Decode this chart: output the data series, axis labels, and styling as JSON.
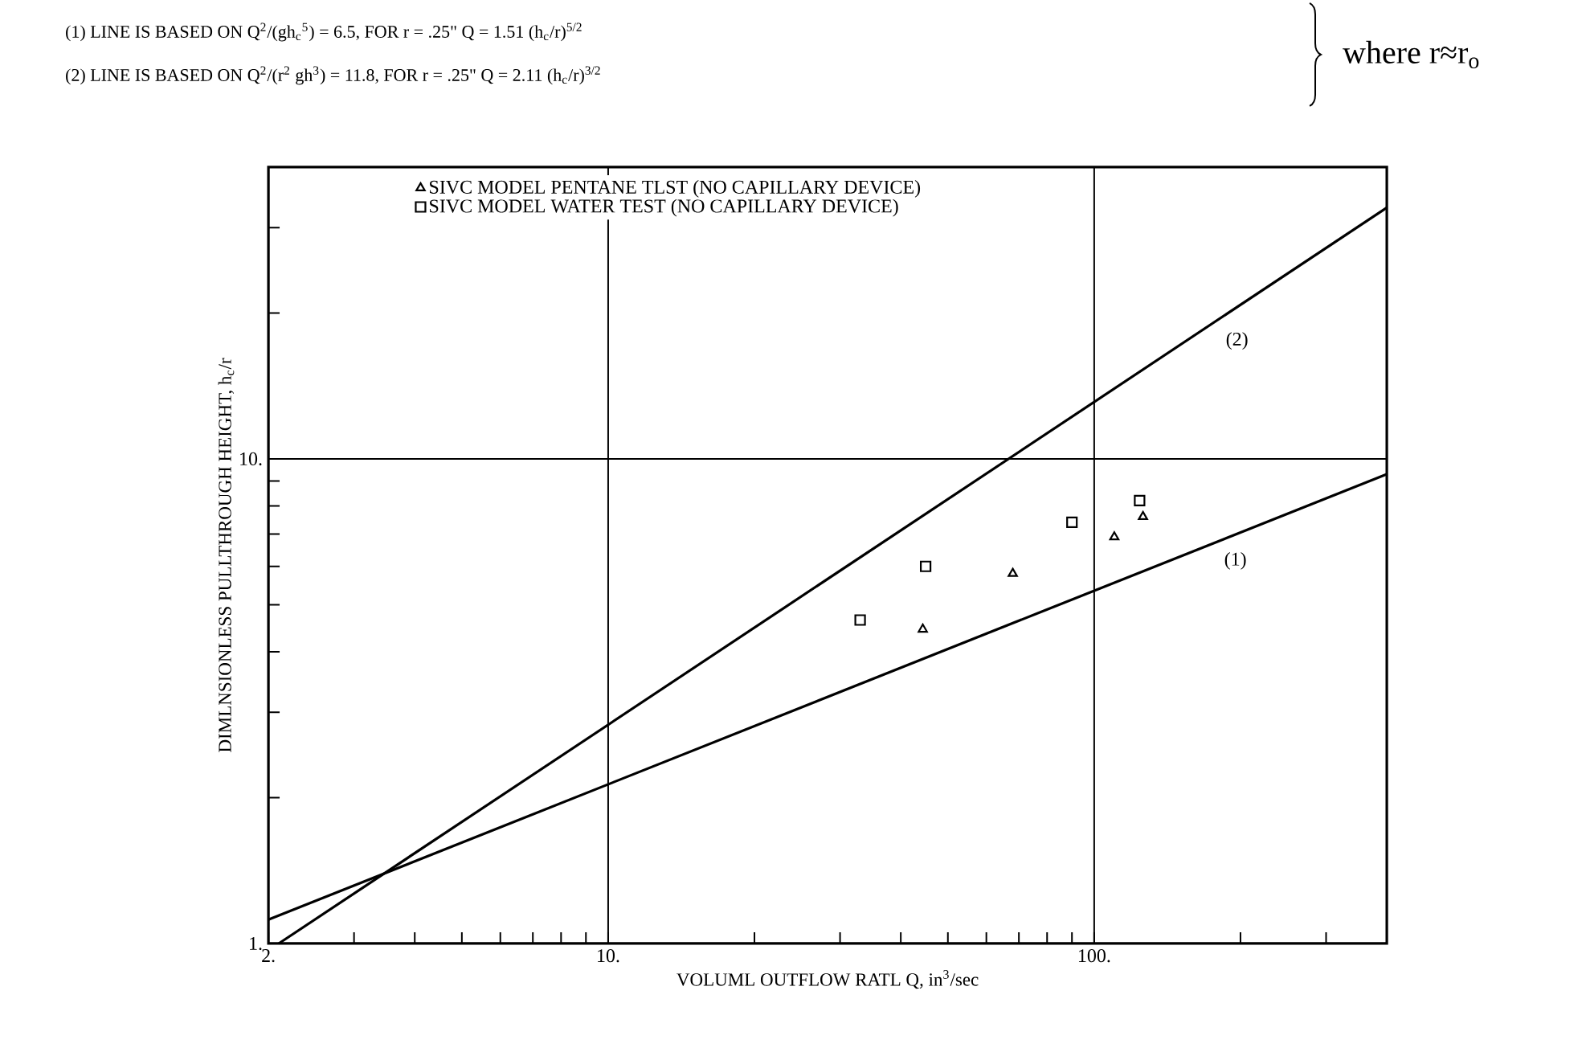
{
  "chart_data": {
    "type": "scatter",
    "title": "(1)  LINE IS BASED ON Q$^{2}$/(gh$_{c}$$^{5}$) = 6.5,  FOR r = .25\"     Q = 1.51 (h$_{c}$/r)$^{5/2}$",
    "subtitle": "(2)  LINE IS BASED ON Q$^{2}$/(r$^{2}$ gh$^{3}$) = 11.8,  FOR r = .25\"     Q = 2.11 (h$_{c}$/r)$^{3/2}$",
    "xlabel": "VOLUML OUTFLOW RATL Q, in$^{3}$/sec",
    "ylabel": "DIMLNSIONLESS PULLTHROUGH HEIGHT, h$_{c}$/r",
    "log": "xy",
    "grid": true,
    "legend": "top left",
    "xlim": [
      2,
      400
    ],
    "ylim": [
      1,
      40
    ],
    "xticks": [
      {
        "value": 2,
        "label": "2."
      },
      {
        "value": 3,
        "label": null
      },
      {
        "value": 4,
        "label": null
      },
      {
        "value": 5,
        "label": null
      },
      {
        "value": 6,
        "label": null
      },
      {
        "value": 7,
        "label": null
      },
      {
        "value": 8,
        "label": null
      },
      {
        "value": 9,
        "label": null
      },
      {
        "value": 10,
        "label": "10."
      },
      {
        "value": 20,
        "label": null
      },
      {
        "value": 30,
        "label": null
      },
      {
        "value": 40,
        "label": null
      },
      {
        "value": 50,
        "label": null
      },
      {
        "value": 60,
        "label": null
      },
      {
        "value": 70,
        "label": null
      },
      {
        "value": 80,
        "label": null
      },
      {
        "value": 90,
        "label": null
      },
      {
        "value": 100,
        "label": "100."
      },
      {
        "value": 200,
        "label": null
      },
      {
        "value": 300,
        "label": null
      }
    ],
    "yticks": [
      {
        "value": 1,
        "label": "1."
      },
      {
        "value": 2,
        "label": null
      },
      {
        "value": 3,
        "label": null
      },
      {
        "value": 4,
        "label": null
      },
      {
        "value": 5,
        "label": null
      },
      {
        "value": 6,
        "label": null
      },
      {
        "value": 7,
        "label": null
      },
      {
        "value": 8,
        "label": null
      },
      {
        "value": 9,
        "label": null
      },
      {
        "value": 10,
        "label": "10."
      },
      {
        "value": 20,
        "label": null
      },
      {
        "value": 30,
        "label": null
      }
    ],
    "series": [
      {
        "name": "SIVC MODEL PENTANE TLST (NO CAPILLARY DEVICE)",
        "color": "#000000",
        "marker": "triangle",
        "x": [
          44.4,
          68,
          110,
          126
        ],
        "values": [
          4.45,
          5.8,
          6.9,
          7.6
        ]
      },
      {
        "name": "SIVC MODEL WATER TEST (NO CAPILLARY DEVICE)",
        "color": "#000000",
        "marker": "square",
        "x": [
          33,
          45,
          90,
          124
        ],
        "values": [
          4.65,
          6.0,
          7.4,
          8.2
        ]
      },
      {
        "type": "line",
        "name": "(1)",
        "color": "#000000",
        "marker": "none",
        "x": [
          2,
          400
        ],
        "values": [
          1.12,
          9.3
        ]
      },
      {
        "type": "line",
        "name": "(2)",
        "color": "#000000",
        "marker": "none",
        "x": [
          2.1,
          400
        ],
        "values": [
          1,
          33
        ]
      }
    ],
    "annotations": [
      "where r≈r$_{o}$"
    ]
  }
}
